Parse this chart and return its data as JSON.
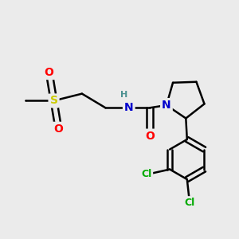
{
  "bg_color": "#ebebeb",
  "atom_colors": {
    "C": "#000000",
    "N": "#0000cc",
    "O": "#ff0000",
    "S": "#cccc00",
    "Cl": "#00aa00",
    "H": "#4a9090"
  },
  "bond_color": "#000000",
  "bond_width": 1.8,
  "figsize": [
    3.0,
    3.0
  ],
  "dpi": 100
}
